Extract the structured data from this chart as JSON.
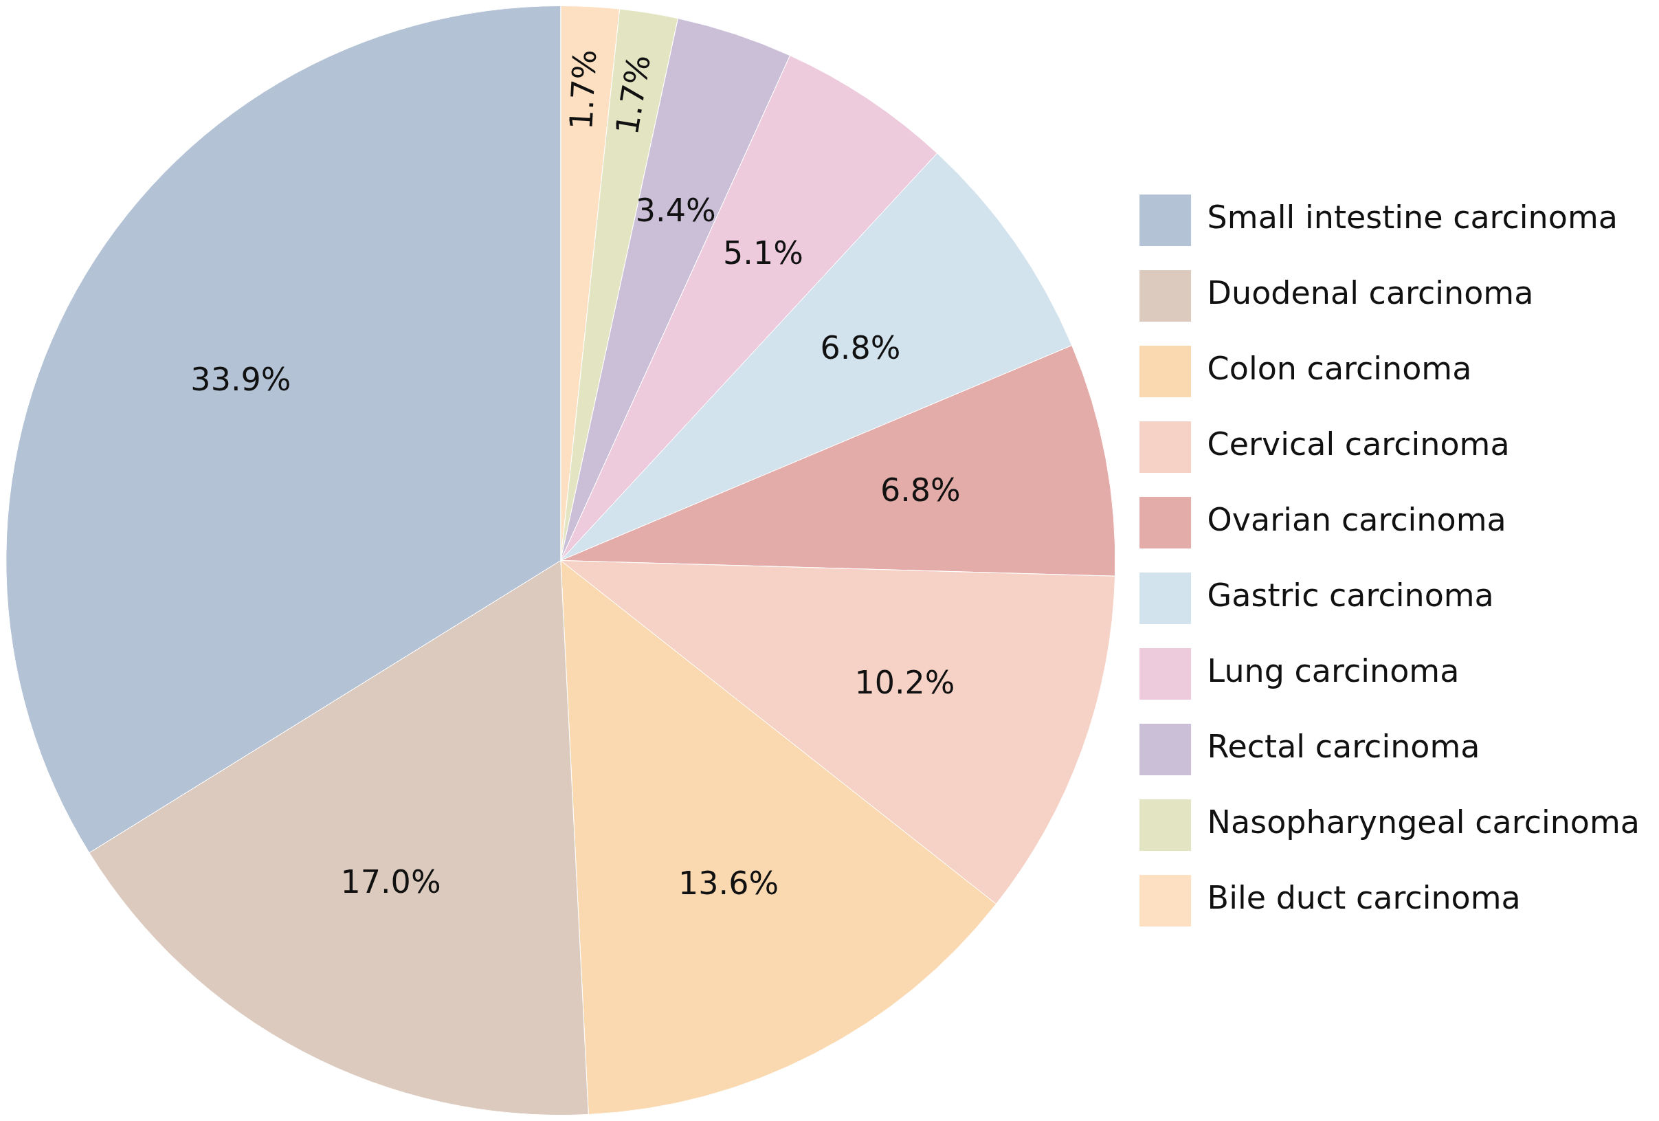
{
  "chart_data": {
    "type": "pie",
    "categories": [
      "Small intestine carcinoma",
      "Duodenal carcinoma",
      "Colon carcinoma",
      "Cervical carcinoma",
      "Ovarian carcinoma",
      "Gastric carcinoma",
      "Lung carcinoma",
      "Rectal carcinoma",
      "Nasopharyngeal carcinoma",
      "Bile duct carcinoma"
    ],
    "values": [
      33.9,
      17.0,
      13.6,
      10.2,
      6.8,
      6.8,
      5.1,
      3.4,
      1.7,
      1.7
    ],
    "colors": [
      "#b3c2d4",
      "#dbcabd",
      "#fad9b0",
      "#f6d2c6",
      "#e3aca8",
      "#d3e3ee",
      "#eecbdc",
      "#cbbfd8",
      "#e3e5c2",
      "#fde0c2"
    ],
    "value_labels": [
      "33.9%",
      "17.0%",
      "13.6%",
      "10.2%",
      "6.8%",
      "6.8%",
      "5.1%",
      "3.4%",
      "1.7%",
      "1.7%"
    ],
    "legend": "right"
  }
}
